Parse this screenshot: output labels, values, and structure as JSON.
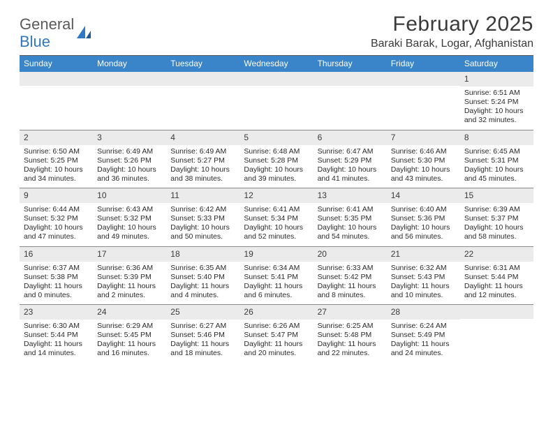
{
  "logo": {
    "line1": "General",
    "line2": "Blue"
  },
  "title": "February 2025",
  "location": "Baraki Barak, Logar, Afghanistan",
  "header_bg": "#3a84c9",
  "daynum_bg": "#ebebeb",
  "cell_border": "#8a8a8a",
  "top_rule": "#5a5a5a",
  "dow": [
    "Sunday",
    "Monday",
    "Tuesday",
    "Wednesday",
    "Thursday",
    "Friday",
    "Saturday"
  ],
  "weeks": [
    [
      {
        "day": "",
        "sunrise": "",
        "sunset": "",
        "daylight": ""
      },
      {
        "day": "",
        "sunrise": "",
        "sunset": "",
        "daylight": ""
      },
      {
        "day": "",
        "sunrise": "",
        "sunset": "",
        "daylight": ""
      },
      {
        "day": "",
        "sunrise": "",
        "sunset": "",
        "daylight": ""
      },
      {
        "day": "",
        "sunrise": "",
        "sunset": "",
        "daylight": ""
      },
      {
        "day": "",
        "sunrise": "",
        "sunset": "",
        "daylight": ""
      },
      {
        "day": "1",
        "sunrise": "Sunrise: 6:51 AM",
        "sunset": "Sunset: 5:24 PM",
        "daylight": "Daylight: 10 hours and 32 minutes."
      }
    ],
    [
      {
        "day": "2",
        "sunrise": "Sunrise: 6:50 AM",
        "sunset": "Sunset: 5:25 PM",
        "daylight": "Daylight: 10 hours and 34 minutes."
      },
      {
        "day": "3",
        "sunrise": "Sunrise: 6:49 AM",
        "sunset": "Sunset: 5:26 PM",
        "daylight": "Daylight: 10 hours and 36 minutes."
      },
      {
        "day": "4",
        "sunrise": "Sunrise: 6:49 AM",
        "sunset": "Sunset: 5:27 PM",
        "daylight": "Daylight: 10 hours and 38 minutes."
      },
      {
        "day": "5",
        "sunrise": "Sunrise: 6:48 AM",
        "sunset": "Sunset: 5:28 PM",
        "daylight": "Daylight: 10 hours and 39 minutes."
      },
      {
        "day": "6",
        "sunrise": "Sunrise: 6:47 AM",
        "sunset": "Sunset: 5:29 PM",
        "daylight": "Daylight: 10 hours and 41 minutes."
      },
      {
        "day": "7",
        "sunrise": "Sunrise: 6:46 AM",
        "sunset": "Sunset: 5:30 PM",
        "daylight": "Daylight: 10 hours and 43 minutes."
      },
      {
        "day": "8",
        "sunrise": "Sunrise: 6:45 AM",
        "sunset": "Sunset: 5:31 PM",
        "daylight": "Daylight: 10 hours and 45 minutes."
      }
    ],
    [
      {
        "day": "9",
        "sunrise": "Sunrise: 6:44 AM",
        "sunset": "Sunset: 5:32 PM",
        "daylight": "Daylight: 10 hours and 47 minutes."
      },
      {
        "day": "10",
        "sunrise": "Sunrise: 6:43 AM",
        "sunset": "Sunset: 5:32 PM",
        "daylight": "Daylight: 10 hours and 49 minutes."
      },
      {
        "day": "11",
        "sunrise": "Sunrise: 6:42 AM",
        "sunset": "Sunset: 5:33 PM",
        "daylight": "Daylight: 10 hours and 50 minutes."
      },
      {
        "day": "12",
        "sunrise": "Sunrise: 6:41 AM",
        "sunset": "Sunset: 5:34 PM",
        "daylight": "Daylight: 10 hours and 52 minutes."
      },
      {
        "day": "13",
        "sunrise": "Sunrise: 6:41 AM",
        "sunset": "Sunset: 5:35 PM",
        "daylight": "Daylight: 10 hours and 54 minutes."
      },
      {
        "day": "14",
        "sunrise": "Sunrise: 6:40 AM",
        "sunset": "Sunset: 5:36 PM",
        "daylight": "Daylight: 10 hours and 56 minutes."
      },
      {
        "day": "15",
        "sunrise": "Sunrise: 6:39 AM",
        "sunset": "Sunset: 5:37 PM",
        "daylight": "Daylight: 10 hours and 58 minutes."
      }
    ],
    [
      {
        "day": "16",
        "sunrise": "Sunrise: 6:37 AM",
        "sunset": "Sunset: 5:38 PM",
        "daylight": "Daylight: 11 hours and 0 minutes."
      },
      {
        "day": "17",
        "sunrise": "Sunrise: 6:36 AM",
        "sunset": "Sunset: 5:39 PM",
        "daylight": "Daylight: 11 hours and 2 minutes."
      },
      {
        "day": "18",
        "sunrise": "Sunrise: 6:35 AM",
        "sunset": "Sunset: 5:40 PM",
        "daylight": "Daylight: 11 hours and 4 minutes."
      },
      {
        "day": "19",
        "sunrise": "Sunrise: 6:34 AM",
        "sunset": "Sunset: 5:41 PM",
        "daylight": "Daylight: 11 hours and 6 minutes."
      },
      {
        "day": "20",
        "sunrise": "Sunrise: 6:33 AM",
        "sunset": "Sunset: 5:42 PM",
        "daylight": "Daylight: 11 hours and 8 minutes."
      },
      {
        "day": "21",
        "sunrise": "Sunrise: 6:32 AM",
        "sunset": "Sunset: 5:43 PM",
        "daylight": "Daylight: 11 hours and 10 minutes."
      },
      {
        "day": "22",
        "sunrise": "Sunrise: 6:31 AM",
        "sunset": "Sunset: 5:44 PM",
        "daylight": "Daylight: 11 hours and 12 minutes."
      }
    ],
    [
      {
        "day": "23",
        "sunrise": "Sunrise: 6:30 AM",
        "sunset": "Sunset: 5:44 PM",
        "daylight": "Daylight: 11 hours and 14 minutes."
      },
      {
        "day": "24",
        "sunrise": "Sunrise: 6:29 AM",
        "sunset": "Sunset: 5:45 PM",
        "daylight": "Daylight: 11 hours and 16 minutes."
      },
      {
        "day": "25",
        "sunrise": "Sunrise: 6:27 AM",
        "sunset": "Sunset: 5:46 PM",
        "daylight": "Daylight: 11 hours and 18 minutes."
      },
      {
        "day": "26",
        "sunrise": "Sunrise: 6:26 AM",
        "sunset": "Sunset: 5:47 PM",
        "daylight": "Daylight: 11 hours and 20 minutes."
      },
      {
        "day": "27",
        "sunrise": "Sunrise: 6:25 AM",
        "sunset": "Sunset: 5:48 PM",
        "daylight": "Daylight: 11 hours and 22 minutes."
      },
      {
        "day": "28",
        "sunrise": "Sunrise: 6:24 AM",
        "sunset": "Sunset: 5:49 PM",
        "daylight": "Daylight: 11 hours and 24 minutes."
      },
      {
        "day": "",
        "sunrise": "",
        "sunset": "",
        "daylight": ""
      }
    ]
  ]
}
